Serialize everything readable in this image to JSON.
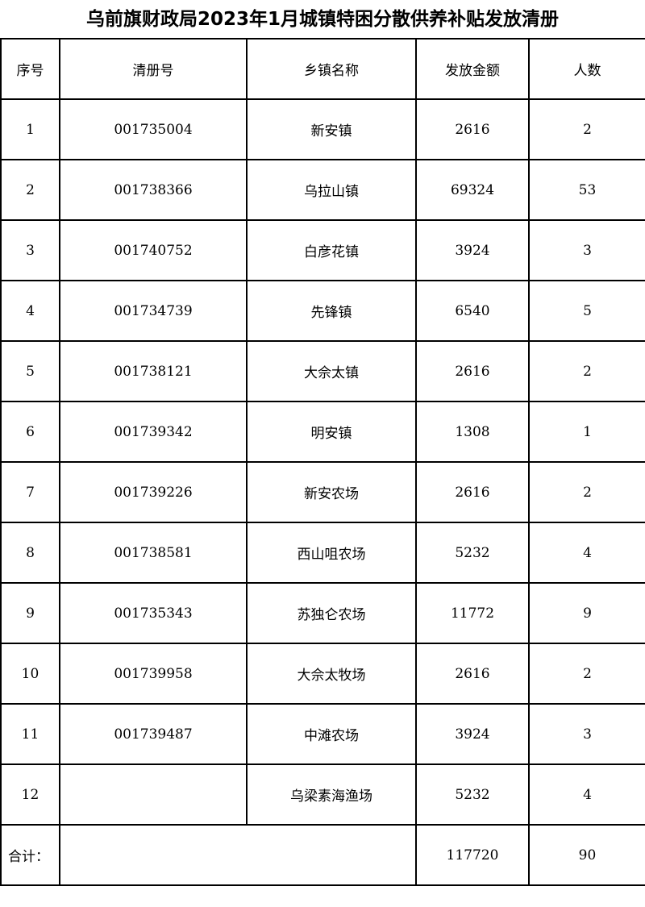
{
  "title": "乌前旗财政局2023年1月城镇特困分散供养补贴发放清册",
  "headers": [
    "序号",
    "清册号",
    "乡镇名称",
    "发放金额",
    "人数"
  ],
  "rows": [
    {
      "no": "1",
      "code": "001735004",
      "town": "新安镇",
      "amount": "2616",
      "people": "2"
    },
    {
      "no": "2",
      "code": "001738366",
      "town": "乌拉山镇",
      "amount": "69324",
      "people": "53"
    },
    {
      "no": "3",
      "code": "001740752",
      "town": "白彦花镇",
      "amount": "3924",
      "people": "3"
    },
    {
      "no": "4",
      "code": "001734739",
      "town": "先锋镇",
      "amount": "6540",
      "people": "5"
    },
    {
      "no": "5",
      "code": "001738121",
      "town": "大佘太镇",
      "amount": "2616",
      "people": "2"
    },
    {
      "no": "6",
      "code": "001739342",
      "town": "明安镇",
      "amount": "1308",
      "people": "1"
    },
    {
      "no": "7",
      "code": "001739226",
      "town": "新安农场",
      "amount": "2616",
      "people": "2"
    },
    {
      "no": "8",
      "code": "001738581",
      "town": "西山咀农场",
      "amount": "5232",
      "people": "4"
    },
    {
      "no": "9",
      "code": "001735343",
      "town": "苏独仑农场",
      "amount": "11772",
      "people": "9"
    },
    {
      "no": "10",
      "code": "001739958",
      "town": "大佘太牧场",
      "amount": "2616",
      "people": "2"
    },
    {
      "no": "11",
      "code": "001739487",
      "town": "中滩农场",
      "amount": "3924",
      "people": "3"
    },
    {
      "no": "12",
      "code": "",
      "town": "乌梁素海渔场",
      "amount": "5232",
      "people": "4"
    }
  ],
  "total": {
    "label": "合计：",
    "amount": "117720",
    "people": "90"
  }
}
